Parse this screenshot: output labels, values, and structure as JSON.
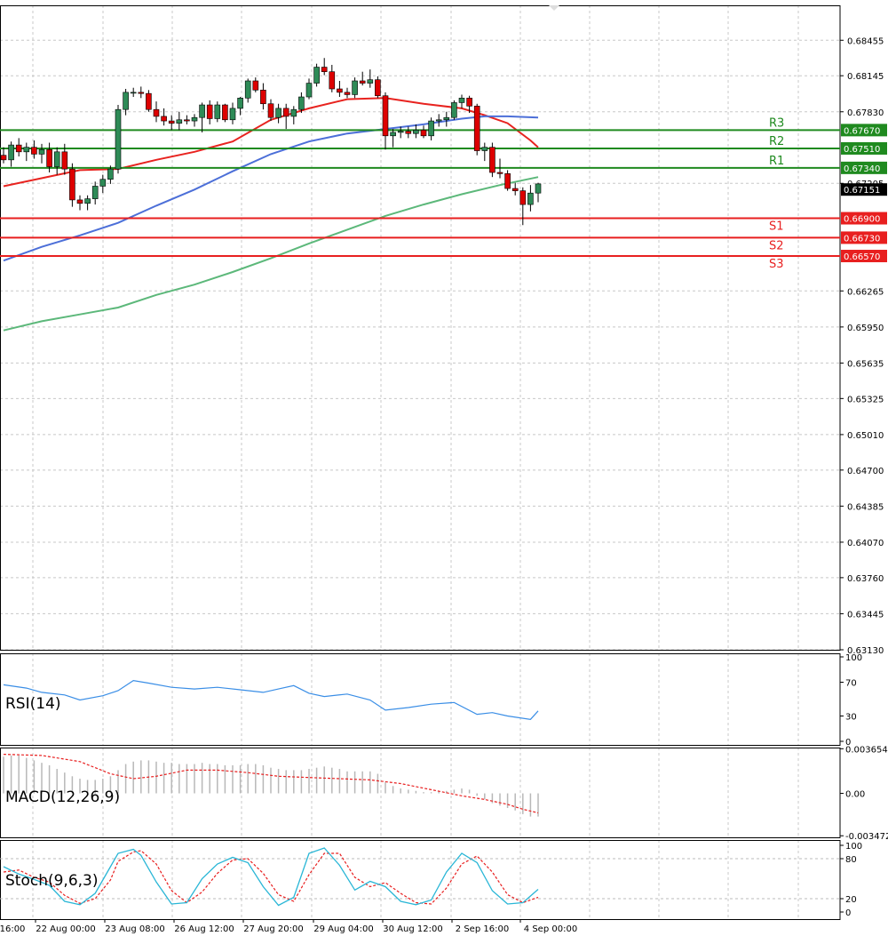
{
  "colors": {
    "background": "#ffffff",
    "grid": "#c8c8c8",
    "frame": "#000000",
    "bull_candle": "#2e8b57",
    "bear_candle": "#dd0000",
    "ma_fast": "#e8231f",
    "ma_mid": "#4c6fd8",
    "ma_slow": "#5cb87a",
    "resistance": "#1f8a1f",
    "support": "#e81f1f",
    "rsi_line": "#3a8ee6",
    "macd_hist": "#b8b8b8",
    "macd_signal": "#e81f1f",
    "stoch_main": "#29b6d6",
    "stoch_signal": "#e81f1f"
  },
  "chart_data": [
    {
      "type": "candlestick",
      "panel": "price",
      "y_ticks": [
        "0.68455",
        "0.68145",
        "0.67830",
        "0.67205",
        "0.66265",
        "0.65950",
        "0.65635",
        "0.65325",
        "0.65010",
        "0.64700",
        "0.64385",
        "0.64070",
        "0.63760",
        "0.63445",
        "0.63130"
      ],
      "ylim": [
        0.6313,
        0.6876
      ],
      "current_price": "0.67151",
      "x_tick_labels": [
        "16:00",
        "22 Aug 00:00",
        "23 Aug 08:00",
        "26 Aug 12:00",
        "27 Aug 20:00",
        "29 Aug 04:00",
        "30 Aug 12:00",
        "2 Sep 16:00",
        "4 Sep 00:00"
      ],
      "candles": [
        [
          0.6745,
          0.6752,
          0.6738,
          0.6741
        ],
        [
          0.6741,
          0.6757,
          0.6735,
          0.6754
        ],
        [
          0.6754,
          0.676,
          0.6744,
          0.6748
        ],
        [
          0.6748,
          0.6756,
          0.674,
          0.6752
        ],
        [
          0.6752,
          0.6758,
          0.6742,
          0.6746
        ],
        [
          0.6746,
          0.6755,
          0.6738,
          0.675
        ],
        [
          0.675,
          0.6756,
          0.673,
          0.6735
        ],
        [
          0.6735,
          0.6752,
          0.6728,
          0.6748
        ],
        [
          0.6748,
          0.6755,
          0.6728,
          0.6733
        ],
        [
          0.6733,
          0.6738,
          0.67,
          0.6706
        ],
        [
          0.6706,
          0.671,
          0.6697,
          0.6703
        ],
        [
          0.6703,
          0.671,
          0.6697,
          0.6707
        ],
        [
          0.6707,
          0.6722,
          0.6702,
          0.6718
        ],
        [
          0.6718,
          0.6728,
          0.6712,
          0.6724
        ],
        [
          0.6724,
          0.6736,
          0.672,
          0.6733
        ],
        [
          0.6733,
          0.6789,
          0.6729,
          0.6785
        ],
        [
          0.6785,
          0.6803,
          0.678,
          0.68
        ],
        [
          0.68,
          0.6804,
          0.6796,
          0.68
        ],
        [
          0.68,
          0.6805,
          0.6795,
          0.6799
        ],
        [
          0.6799,
          0.6802,
          0.6783,
          0.6785
        ],
        [
          0.6785,
          0.6792,
          0.6774,
          0.6779
        ],
        [
          0.6779,
          0.6786,
          0.6771,
          0.6775
        ],
        [
          0.6775,
          0.678,
          0.6767,
          0.6773
        ],
        [
          0.6773,
          0.6783,
          0.6767,
          0.6776
        ],
        [
          0.6776,
          0.678,
          0.6772,
          0.6775
        ],
        [
          0.6775,
          0.6781,
          0.677,
          0.6778
        ],
        [
          0.6778,
          0.6791,
          0.6765,
          0.6789
        ],
        [
          0.6789,
          0.6793,
          0.6772,
          0.6777
        ],
        [
          0.6777,
          0.6792,
          0.6774,
          0.6789
        ],
        [
          0.6789,
          0.679,
          0.6774,
          0.6776
        ],
        [
          0.6776,
          0.6791,
          0.6772,
          0.6786
        ],
        [
          0.6786,
          0.6796,
          0.678,
          0.6795
        ],
        [
          0.6795,
          0.6812,
          0.6791,
          0.681
        ],
        [
          0.681,
          0.6813,
          0.68,
          0.6802
        ],
        [
          0.6802,
          0.6808,
          0.6785,
          0.679
        ],
        [
          0.679,
          0.6794,
          0.6775,
          0.6778
        ],
        [
          0.6778,
          0.679,
          0.6773,
          0.6786
        ],
        [
          0.6786,
          0.679,
          0.6768,
          0.6779
        ],
        [
          0.6779,
          0.6788,
          0.6772,
          0.6785
        ],
        [
          0.6785,
          0.68,
          0.6782,
          0.6796
        ],
        [
          0.6796,
          0.6812,
          0.6794,
          0.6808
        ],
        [
          0.6808,
          0.6825,
          0.6805,
          0.6822
        ],
        [
          0.6822,
          0.683,
          0.6815,
          0.6818
        ],
        [
          0.6818,
          0.6824,
          0.68,
          0.6803
        ],
        [
          0.6803,
          0.681,
          0.6796,
          0.68
        ],
        [
          0.68,
          0.6804,
          0.6795,
          0.6798
        ],
        [
          0.6798,
          0.6813,
          0.6795,
          0.681
        ],
        [
          0.681,
          0.6818,
          0.6806,
          0.6808
        ],
        [
          0.6808,
          0.682,
          0.6804,
          0.6811
        ],
        [
          0.6811,
          0.6814,
          0.6795,
          0.6797
        ],
        [
          0.6797,
          0.68,
          0.675,
          0.6762
        ],
        [
          0.6762,
          0.6768,
          0.6752,
          0.6765
        ],
        [
          0.6765,
          0.677,
          0.676,
          0.6766
        ],
        [
          0.6766,
          0.677,
          0.676,
          0.6764
        ],
        [
          0.6764,
          0.6772,
          0.676,
          0.6767
        ],
        [
          0.6767,
          0.6771,
          0.676,
          0.6762
        ],
        [
          0.6762,
          0.6778,
          0.6758,
          0.6775
        ],
        [
          0.6775,
          0.6781,
          0.677,
          0.6776
        ],
        [
          0.6776,
          0.6783,
          0.677,
          0.6778
        ],
        [
          0.6778,
          0.6793,
          0.6776,
          0.6791
        ],
        [
          0.6791,
          0.6798,
          0.6786,
          0.6795
        ],
        [
          0.6795,
          0.6797,
          0.6782,
          0.6788
        ],
        [
          0.6788,
          0.679,
          0.6745,
          0.6749
        ],
        [
          0.6749,
          0.6756,
          0.674,
          0.6752
        ],
        [
          0.6752,
          0.6756,
          0.6726,
          0.673
        ],
        [
          0.673,
          0.6742,
          0.6725,
          0.6729
        ],
        [
          0.6729,
          0.6732,
          0.6714,
          0.6716
        ],
        [
          0.6716,
          0.6721,
          0.671,
          0.6714
        ],
        [
          0.6714,
          0.6717,
          0.6684,
          0.6702
        ],
        [
          0.6702,
          0.6719,
          0.6696,
          0.6712
        ],
        [
          0.6712,
          0.6721,
          0.6704,
          0.672
        ]
      ],
      "moving_averages": [
        {
          "color_key": "ma_fast",
          "x": [
            0,
            10,
            15,
            20,
            25,
            30,
            35,
            40,
            45,
            50,
            55,
            60,
            63,
            66,
            69,
            70
          ],
          "y": [
            0.6718,
            0.6732,
            0.6733,
            0.6741,
            0.6748,
            0.6757,
            0.6776,
            0.6786,
            0.6794,
            0.6795,
            0.679,
            0.6786,
            0.678,
            0.6773,
            0.6758,
            0.6752
          ]
        },
        {
          "color_key": "ma_mid",
          "x": [
            0,
            5,
            10,
            15,
            20,
            25,
            30,
            35,
            40,
            45,
            50,
            55,
            60,
            63,
            66,
            70
          ],
          "y": [
            0.6653,
            0.6665,
            0.6675,
            0.6686,
            0.6701,
            0.6715,
            0.6731,
            0.6746,
            0.6757,
            0.6764,
            0.6768,
            0.6772,
            0.6777,
            0.6779,
            0.6779,
            0.6778
          ]
        },
        {
          "color_key": "ma_slow",
          "x": [
            0,
            5,
            10,
            15,
            20,
            25,
            30,
            35,
            40,
            45,
            50,
            55,
            60,
            65,
            70
          ],
          "y": [
            0.6592,
            0.66,
            0.6606,
            0.6612,
            0.6623,
            0.6632,
            0.6643,
            0.6655,
            0.6668,
            0.668,
            0.6692,
            0.6702,
            0.6711,
            0.6719,
            0.6726
          ]
        }
      ],
      "levels": [
        {
          "label": "R3",
          "price": "0.67670",
          "value": 0.6767,
          "kind": "resistance"
        },
        {
          "label": "R2",
          "price": "0.67510",
          "value": 0.6751,
          "kind": "resistance"
        },
        {
          "label": "R1",
          "price": "0.67340",
          "value": 0.6734,
          "kind": "resistance"
        },
        {
          "label": "S1",
          "price": "0.66900",
          "value": 0.669,
          "kind": "support"
        },
        {
          "label": "S2",
          "price": "0.66730",
          "value": 0.6673,
          "kind": "support"
        },
        {
          "label": "S3",
          "price": "0.66570",
          "value": 0.6657,
          "kind": "support"
        }
      ]
    },
    {
      "type": "line",
      "panel": "rsi",
      "label": "RSI(14)",
      "y_ticks": [
        "100",
        "70",
        "30",
        "0"
      ],
      "ylim": [
        0,
        100
      ],
      "x": [
        0,
        3,
        5,
        8,
        10,
        13,
        15,
        17,
        19,
        22,
        25,
        28,
        31,
        34,
        36,
        38,
        40,
        42,
        45,
        48,
        50,
        53,
        56,
        59,
        62,
        64,
        66,
        69,
        70
      ],
      "values": [
        67,
        63,
        58,
        55,
        49,
        54,
        60,
        72,
        69,
        64,
        62,
        64,
        61,
        58,
        62,
        66,
        57,
        53,
        56,
        49,
        37,
        40,
        44,
        46,
        32,
        34,
        30,
        26,
        36
      ]
    },
    {
      "type": "bar+line",
      "panel": "macd",
      "label": "MACD(12,26,9)",
      "y_ticks": [
        "0.003654",
        "0.00",
        "-0.003472"
      ],
      "ylim": [
        -0.0036,
        0.00375
      ],
      "histogram": [
        0.003,
        0.0031,
        0.0031,
        0.0029,
        0.0027,
        0.0025,
        0.0023,
        0.002,
        0.0017,
        0.0014,
        0.0012,
        0.0011,
        0.0011,
        0.0012,
        0.0014,
        0.0019,
        0.0024,
        0.0026,
        0.0027,
        0.0027,
        0.0026,
        0.0025,
        0.0025,
        0.0024,
        0.0024,
        0.0024,
        0.0025,
        0.0024,
        0.0024,
        0.0023,
        0.0023,
        0.0023,
        0.0024,
        0.0024,
        0.0023,
        0.0021,
        0.002,
        0.0019,
        0.0019,
        0.0019,
        0.002,
        0.0021,
        0.0022,
        0.0021,
        0.002,
        0.0018,
        0.0018,
        0.0018,
        0.0018,
        0.0016,
        0.0009,
        0.0006,
        0.0004,
        0.0003,
        0.0002,
        0.0001,
        0.0001,
        0.0002,
        0.0002,
        0.0003,
        0.0004,
        0.0003,
        -0.0002,
        -0.0005,
        -0.0008,
        -0.001,
        -0.0012,
        -0.0014,
        -0.0017,
        -0.0019,
        -0.0019
      ],
      "signal_x": [
        0,
        5,
        10,
        14,
        17,
        20,
        24,
        28,
        32,
        36,
        40,
        44,
        48,
        52,
        56,
        60,
        63,
        66,
        68,
        70
      ],
      "signal": [
        0.0032,
        0.0031,
        0.0026,
        0.0016,
        0.0012,
        0.0014,
        0.0019,
        0.0019,
        0.0017,
        0.0014,
        0.0013,
        0.0012,
        0.0011,
        0.0008,
        0.0003,
        -0.0002,
        -0.0005,
        -0.0009,
        -0.0013,
        -0.0016
      ]
    },
    {
      "type": "line",
      "panel": "stochastic",
      "label": "Stoch(9,6,3)",
      "y_ticks": [
        "100",
        "80",
        "20",
        "0"
      ],
      "ylim": [
        0,
        100
      ],
      "x": [
        0,
        2,
        4,
        6,
        8,
        10,
        12,
        14,
        15,
        17,
        18,
        20,
        22,
        24,
        26,
        28,
        30,
        32,
        34,
        36,
        38,
        40,
        42,
        44,
        46,
        48,
        50,
        52,
        54,
        56,
        58,
        60,
        62,
        64,
        66,
        68,
        70
      ],
      "values": [
        68,
        57,
        49,
        40,
        16,
        11,
        28,
        68,
        88,
        94,
        85,
        45,
        12,
        14,
        50,
        72,
        82,
        74,
        38,
        10,
        22,
        88,
        96,
        70,
        33,
        46,
        38,
        16,
        11,
        18,
        60,
        88,
        74,
        32,
        12,
        14,
        34
      ],
      "signal": [
        60,
        63,
        52,
        45,
        25,
        13,
        20,
        48,
        76,
        90,
        92,
        72,
        32,
        14,
        30,
        58,
        78,
        80,
        58,
        26,
        16,
        56,
        88,
        88,
        52,
        38,
        44,
        28,
        14,
        12,
        36,
        72,
        84,
        60,
        26,
        14,
        22
      ]
    }
  ]
}
